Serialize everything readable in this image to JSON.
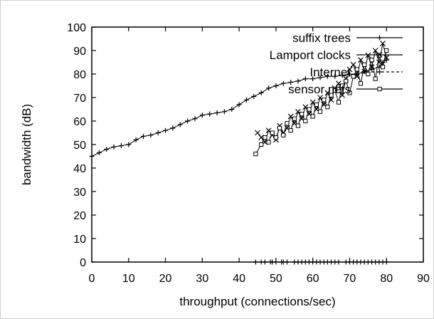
{
  "chart_data": {
    "type": "scatter",
    "title": "",
    "xlabel": "throughput (connections/sec)",
    "ylabel": "bandwidth (dB)",
    "xlim": [
      0,
      90
    ],
    "ylim": [
      0,
      100
    ],
    "xticks": [
      0,
      10,
      20,
      30,
      40,
      50,
      60,
      70,
      80,
      90
    ],
    "yticks": [
      0,
      10,
      20,
      30,
      40,
      50,
      60,
      70,
      80,
      90,
      100
    ],
    "legend_position": "top-right",
    "grid": false,
    "series": [
      {
        "name": "suffix trees",
        "marker": "plus",
        "line": "solid",
        "points": [
          [
            0,
            45
          ],
          [
            2,
            46.5
          ],
          [
            4,
            48
          ],
          [
            6,
            49
          ],
          [
            8,
            49.5
          ],
          [
            10,
            50
          ],
          [
            12,
            52
          ],
          [
            14,
            53.5
          ],
          [
            16,
            54
          ],
          [
            18,
            55
          ],
          [
            20,
            56
          ],
          [
            22,
            57
          ],
          [
            24,
            58.5
          ],
          [
            26,
            60
          ],
          [
            28,
            61
          ],
          [
            30,
            62.5
          ],
          [
            32,
            63
          ],
          [
            34,
            63.5
          ],
          [
            36,
            64
          ],
          [
            38,
            65
          ],
          [
            40,
            67
          ],
          [
            42,
            69
          ],
          [
            44,
            70.5
          ],
          [
            46,
            72
          ],
          [
            48,
            74
          ],
          [
            50,
            75
          ],
          [
            52,
            76
          ],
          [
            54,
            76.5
          ],
          [
            56,
            77
          ],
          [
            58,
            78
          ],
          [
            60,
            78
          ],
          [
            62,
            78.5
          ],
          [
            64,
            79
          ],
          [
            66,
            79
          ],
          [
            68,
            79.5
          ],
          [
            70,
            80
          ],
          [
            72,
            80
          ],
          [
            74,
            81
          ],
          [
            76,
            82
          ],
          [
            78,
            83
          ],
          [
            79,
            85
          ],
          [
            80,
            86
          ]
        ]
      },
      {
        "name": "Lamport clocks",
        "marker": "x",
        "line": "solid",
        "points": [
          [
            45,
            55
          ],
          [
            46,
            53
          ],
          [
            47,
            51
          ],
          [
            48,
            56
          ],
          [
            49,
            54
          ],
          [
            50,
            52
          ],
          [
            51,
            58
          ],
          [
            52,
            55
          ],
          [
            53,
            57
          ],
          [
            54,
            62
          ],
          [
            55,
            59
          ],
          [
            56,
            64
          ],
          [
            57,
            61
          ],
          [
            58,
            66
          ],
          [
            59,
            63
          ],
          [
            60,
            68
          ],
          [
            61,
            65
          ],
          [
            62,
            70
          ],
          [
            63,
            67
          ],
          [
            64,
            72
          ],
          [
            65,
            69
          ],
          [
            66,
            74
          ],
          [
            67,
            76
          ],
          [
            68,
            71
          ],
          [
            69,
            78
          ],
          [
            70,
            82
          ],
          [
            71,
            84
          ],
          [
            72,
            79
          ],
          [
            73,
            86
          ],
          [
            74,
            81
          ],
          [
            75,
            88
          ],
          [
            76,
            83
          ],
          [
            77,
            90
          ],
          [
            78,
            85
          ],
          [
            79,
            93
          ],
          [
            80,
            87
          ]
        ]
      },
      {
        "name": "Internet",
        "marker": "plus",
        "line": "dashed",
        "points": [
          [
            44.5,
            0
          ],
          [
            46,
            0
          ],
          [
            47,
            0
          ],
          [
            48.5,
            0
          ],
          [
            49,
            0
          ],
          [
            50,
            0
          ],
          [
            51.5,
            0
          ],
          [
            52,
            0
          ],
          [
            53,
            0
          ],
          [
            55,
            0
          ],
          [
            56,
            0
          ],
          [
            57,
            0
          ],
          [
            58,
            0
          ],
          [
            59,
            0
          ],
          [
            60,
            0
          ],
          [
            61,
            0
          ],
          [
            62,
            0
          ],
          [
            63,
            0
          ],
          [
            64,
            0
          ],
          [
            65,
            0
          ],
          [
            66,
            0
          ],
          [
            67,
            0
          ],
          [
            69,
            0
          ],
          [
            70,
            0
          ],
          [
            71,
            0
          ],
          [
            72,
            0
          ],
          [
            73,
            0
          ],
          [
            74,
            0
          ],
          [
            75,
            0
          ],
          [
            76,
            0
          ],
          [
            77,
            0
          ],
          [
            78,
            0
          ],
          [
            79,
            0
          ],
          [
            80,
            0
          ]
        ]
      },
      {
        "name": "sensor nets",
        "marker": "square",
        "line": "solid",
        "points": [
          [
            44.5,
            46
          ],
          [
            46,
            50
          ],
          [
            47,
            53
          ],
          [
            48,
            51
          ],
          [
            49,
            55
          ],
          [
            50,
            53
          ],
          [
            51,
            57
          ],
          [
            52,
            54
          ],
          [
            53,
            59
          ],
          [
            54,
            56
          ],
          [
            55,
            61
          ],
          [
            56,
            58
          ],
          [
            57,
            63
          ],
          [
            58,
            60
          ],
          [
            59,
            65
          ],
          [
            60,
            62
          ],
          [
            61,
            67
          ],
          [
            62,
            64
          ],
          [
            63,
            69
          ],
          [
            64,
            66
          ],
          [
            65,
            71
          ],
          [
            66,
            73
          ],
          [
            67,
            68
          ],
          [
            68,
            75
          ],
          [
            69,
            77
          ],
          [
            70,
            72
          ],
          [
            71,
            79
          ],
          [
            72,
            82
          ],
          [
            73,
            76
          ],
          [
            74,
            84
          ],
          [
            75,
            80
          ],
          [
            76,
            86
          ],
          [
            77,
            78
          ],
          [
            78,
            88
          ],
          [
            79,
            83
          ],
          [
            80,
            90
          ]
        ]
      }
    ]
  }
}
